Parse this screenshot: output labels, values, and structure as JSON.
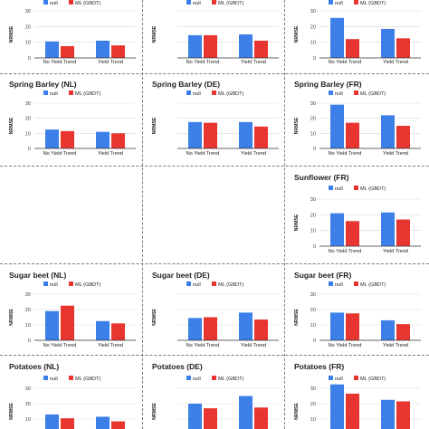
{
  "colors": {
    "null": "#3d7fe8",
    "ml": "#e8352f",
    "grid": "#d9d9d9",
    "axis": "#333333"
  },
  "chart_data": [
    {
      "id": "r0c0",
      "type": "bar",
      "title": "",
      "ylabel": "NRMSE",
      "yticks": [
        0,
        10,
        20,
        30
      ],
      "ylim": [
        0,
        30
      ],
      "categories": [
        "No Yield Trend",
        "Yield Trend"
      ],
      "series": [
        {
          "name": "null",
          "values": [
            10.5,
            11
          ]
        },
        {
          "name": "ML (GBDT)",
          "values": [
            7.5,
            8
          ]
        }
      ]
    },
    {
      "id": "r0c1",
      "type": "bar",
      "title": "",
      "ylabel": "NRMSE",
      "yticks": [],
      "ylim": [
        0,
        30
      ],
      "categories": [
        "No Yield Trend",
        "Yield Trend"
      ],
      "series": [
        {
          "name": "null",
          "values": [
            14.5,
            15
          ]
        },
        {
          "name": "ML (GBDT)",
          "values": [
            14.5,
            11
          ]
        }
      ]
    },
    {
      "id": "r0c2",
      "type": "bar",
      "title": "",
      "ylabel": "NRMSE",
      "yticks": [
        0,
        10,
        20,
        30
      ],
      "ylim": [
        0,
        30
      ],
      "categories": [
        "No Yield Trend",
        "Yield Trend"
      ],
      "series": [
        {
          "name": "null",
          "values": [
            25.5,
            18.5
          ]
        },
        {
          "name": "ML (GBDT)",
          "values": [
            12,
            12.5
          ]
        }
      ]
    },
    {
      "id": "r1c0",
      "type": "bar",
      "title": "Spring Barley (NL)",
      "ylabel": "NRMSE",
      "yticks": [
        0,
        10,
        20,
        30
      ],
      "ylim": [
        0,
        30
      ],
      "categories": [
        "No Yield Trend",
        "Yield Trend"
      ],
      "series": [
        {
          "name": "null",
          "values": [
            12.5,
            11
          ]
        },
        {
          "name": "ML (GBDT)",
          "values": [
            11.5,
            10
          ]
        }
      ]
    },
    {
      "id": "r1c1",
      "type": "bar",
      "title": "Spring Barley (DE)",
      "ylabel": "NRMSE",
      "yticks": [],
      "ylim": [
        0,
        30
      ],
      "categories": [
        "No Yield Trend",
        "Yield Trend"
      ],
      "series": [
        {
          "name": "null",
          "values": [
            17.5,
            17.5
          ]
        },
        {
          "name": "ML (GBDT)",
          "values": [
            17,
            14.5
          ]
        }
      ]
    },
    {
      "id": "r1c2",
      "type": "bar",
      "title": "Spring Barley (FR)",
      "ylabel": "NRMSE",
      "yticks": [
        0,
        10,
        20,
        30
      ],
      "ylim": [
        0,
        30
      ],
      "categories": [
        "No Yield Trend",
        "Yield Trend"
      ],
      "series": [
        {
          "name": "null",
          "values": [
            29,
            22
          ]
        },
        {
          "name": "ML (GBDT)",
          "values": [
            17,
            15
          ]
        }
      ]
    },
    {
      "id": "r2c2",
      "type": "bar",
      "title": "Sunflower (FR)",
      "ylabel": "NRMSE",
      "yticks": [
        0,
        10,
        20,
        30
      ],
      "ylim": [
        0,
        30
      ],
      "categories": [
        "No Yield Trend",
        "Yield Trend"
      ],
      "series": [
        {
          "name": "null",
          "values": [
            21,
            21.5
          ]
        },
        {
          "name": "ML (GBDT)",
          "values": [
            16,
            17
          ]
        }
      ]
    },
    {
      "id": "r3c0",
      "type": "bar",
      "title": "Sugar beet (NL)",
      "ylabel": "NRMSE",
      "yticks": [
        0,
        10,
        20,
        30
      ],
      "ylim": [
        0,
        30
      ],
      "categories": [
        "No Yield Trend",
        "Yield Trend"
      ],
      "series": [
        {
          "name": "null",
          "values": [
            19,
            12.5
          ]
        },
        {
          "name": "ML (GBDT)",
          "values": [
            22.5,
            11
          ]
        }
      ]
    },
    {
      "id": "r3c1",
      "type": "bar",
      "title": "Sugar beet (DE)",
      "ylabel": "NRMSE",
      "yticks": [],
      "ylim": [
        0,
        30
      ],
      "categories": [
        "No Yield Trend",
        "Yield Trend"
      ],
      "series": [
        {
          "name": "null",
          "values": [
            14.5,
            18
          ]
        },
        {
          "name": "ML (GBDT)",
          "values": [
            15,
            13.5
          ]
        }
      ]
    },
    {
      "id": "r3c2",
      "type": "bar",
      "title": "Sugar beet (FR)",
      "ylabel": "NRMSE",
      "yticks": [
        0,
        10,
        20,
        30
      ],
      "ylim": [
        0,
        30
      ],
      "categories": [
        "No Yield Trend",
        "Yield Trend"
      ],
      "series": [
        {
          "name": "null",
          "values": [
            18,
            13
          ]
        },
        {
          "name": "ML (GBDT)",
          "values": [
            17.5,
            10.5
          ]
        }
      ]
    },
    {
      "id": "r4c0",
      "type": "bar",
      "title": "Potatoes (NL)",
      "ylabel": "NRMSE",
      "yticks": [
        0,
        10,
        20,
        30
      ],
      "ylim": [
        0,
        30
      ],
      "categories": [
        "No Yield Trend",
        "Yield Trend"
      ],
      "series": [
        {
          "name": "null",
          "values": [
            13,
            11.5
          ]
        },
        {
          "name": "ML (GBDT)",
          "values": [
            10.5,
            8.5
          ]
        }
      ]
    },
    {
      "id": "r4c1",
      "type": "bar",
      "title": "Potatoes (DE)",
      "ylabel": "NRMSE",
      "yticks": [],
      "ylim": [
        0,
        30
      ],
      "categories": [
        "No Yield Trend",
        "Yield Trend"
      ],
      "series": [
        {
          "name": "null",
          "values": [
            20,
            25
          ]
        },
        {
          "name": "ML (GBDT)",
          "values": [
            17,
            17.5
          ]
        }
      ]
    },
    {
      "id": "r4c2",
      "type": "bar",
      "title": "Potatoes (FR)",
      "ylabel": "NRMSE",
      "yticks": [
        0,
        10,
        20,
        30
      ],
      "ylim": [
        0,
        30
      ],
      "categories": [
        "No Yield Trend",
        "Yield Trend"
      ],
      "series": [
        {
          "name": "null",
          "values": [
            32.5,
            22.5
          ]
        },
        {
          "name": "ML (GBDT)",
          "values": [
            26.5,
            21.5
          ]
        }
      ]
    }
  ]
}
